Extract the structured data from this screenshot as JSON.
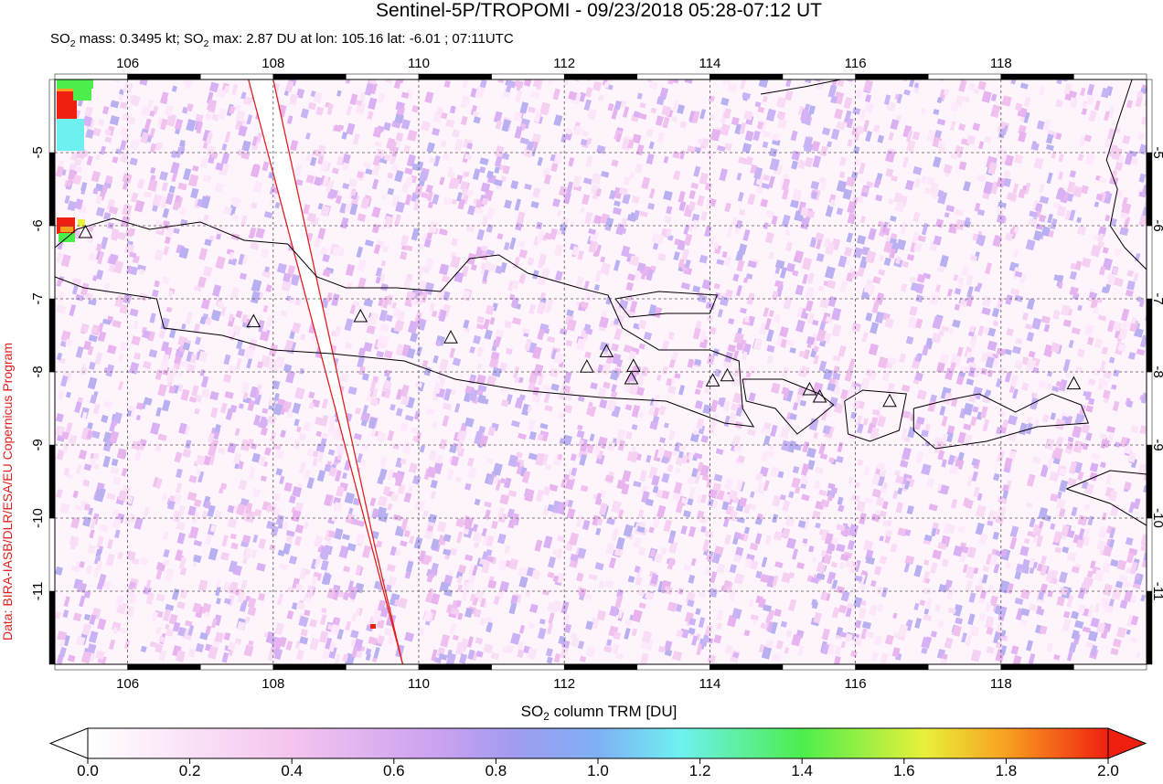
{
  "title": "Sentinel-5P/TROPOMI - 09/23/2018 05:28-07:12 UT",
  "subtitle": [
    "SO",
    "2",
    " mass: 0.3495 kt; SO",
    "2",
    " max: 2.87 DU at lon: 105.16 lat: -6.01 ; 07:11UTC"
  ],
  "credit": "Data: BIRA-IASB/DLR/ESA/EU Copernicus Program",
  "map": {
    "xlim": [
      105,
      120
    ],
    "ylim": [
      -12,
      -4
    ],
    "xticks": [
      106,
      108,
      110,
      112,
      114,
      116,
      118
    ],
    "yticks": [
      -5,
      -6,
      -7,
      -8,
      -9,
      -10,
      -11
    ],
    "grid": true
  },
  "colorbar": {
    "label": [
      "SO",
      "2",
      " column TRM [DU]"
    ],
    "lim": [
      0,
      2
    ],
    "ticks": [
      {
        "value": 0,
        "label": "0.0"
      },
      {
        "value": 0.2,
        "label": "0.2"
      },
      {
        "value": 0.4,
        "label": "0.4"
      },
      {
        "value": 0.6,
        "label": "0.6"
      },
      {
        "value": 0.8,
        "label": "0.8"
      },
      {
        "value": 1,
        "label": "1.0"
      },
      {
        "value": 1.2,
        "label": "1.2"
      },
      {
        "value": 1.4,
        "label": "1.4"
      },
      {
        "value": 1.6,
        "label": "1.6"
      },
      {
        "value": 1.8,
        "label": "1.8"
      },
      {
        "value": 2,
        "label": "2.0"
      }
    ]
  }
}
